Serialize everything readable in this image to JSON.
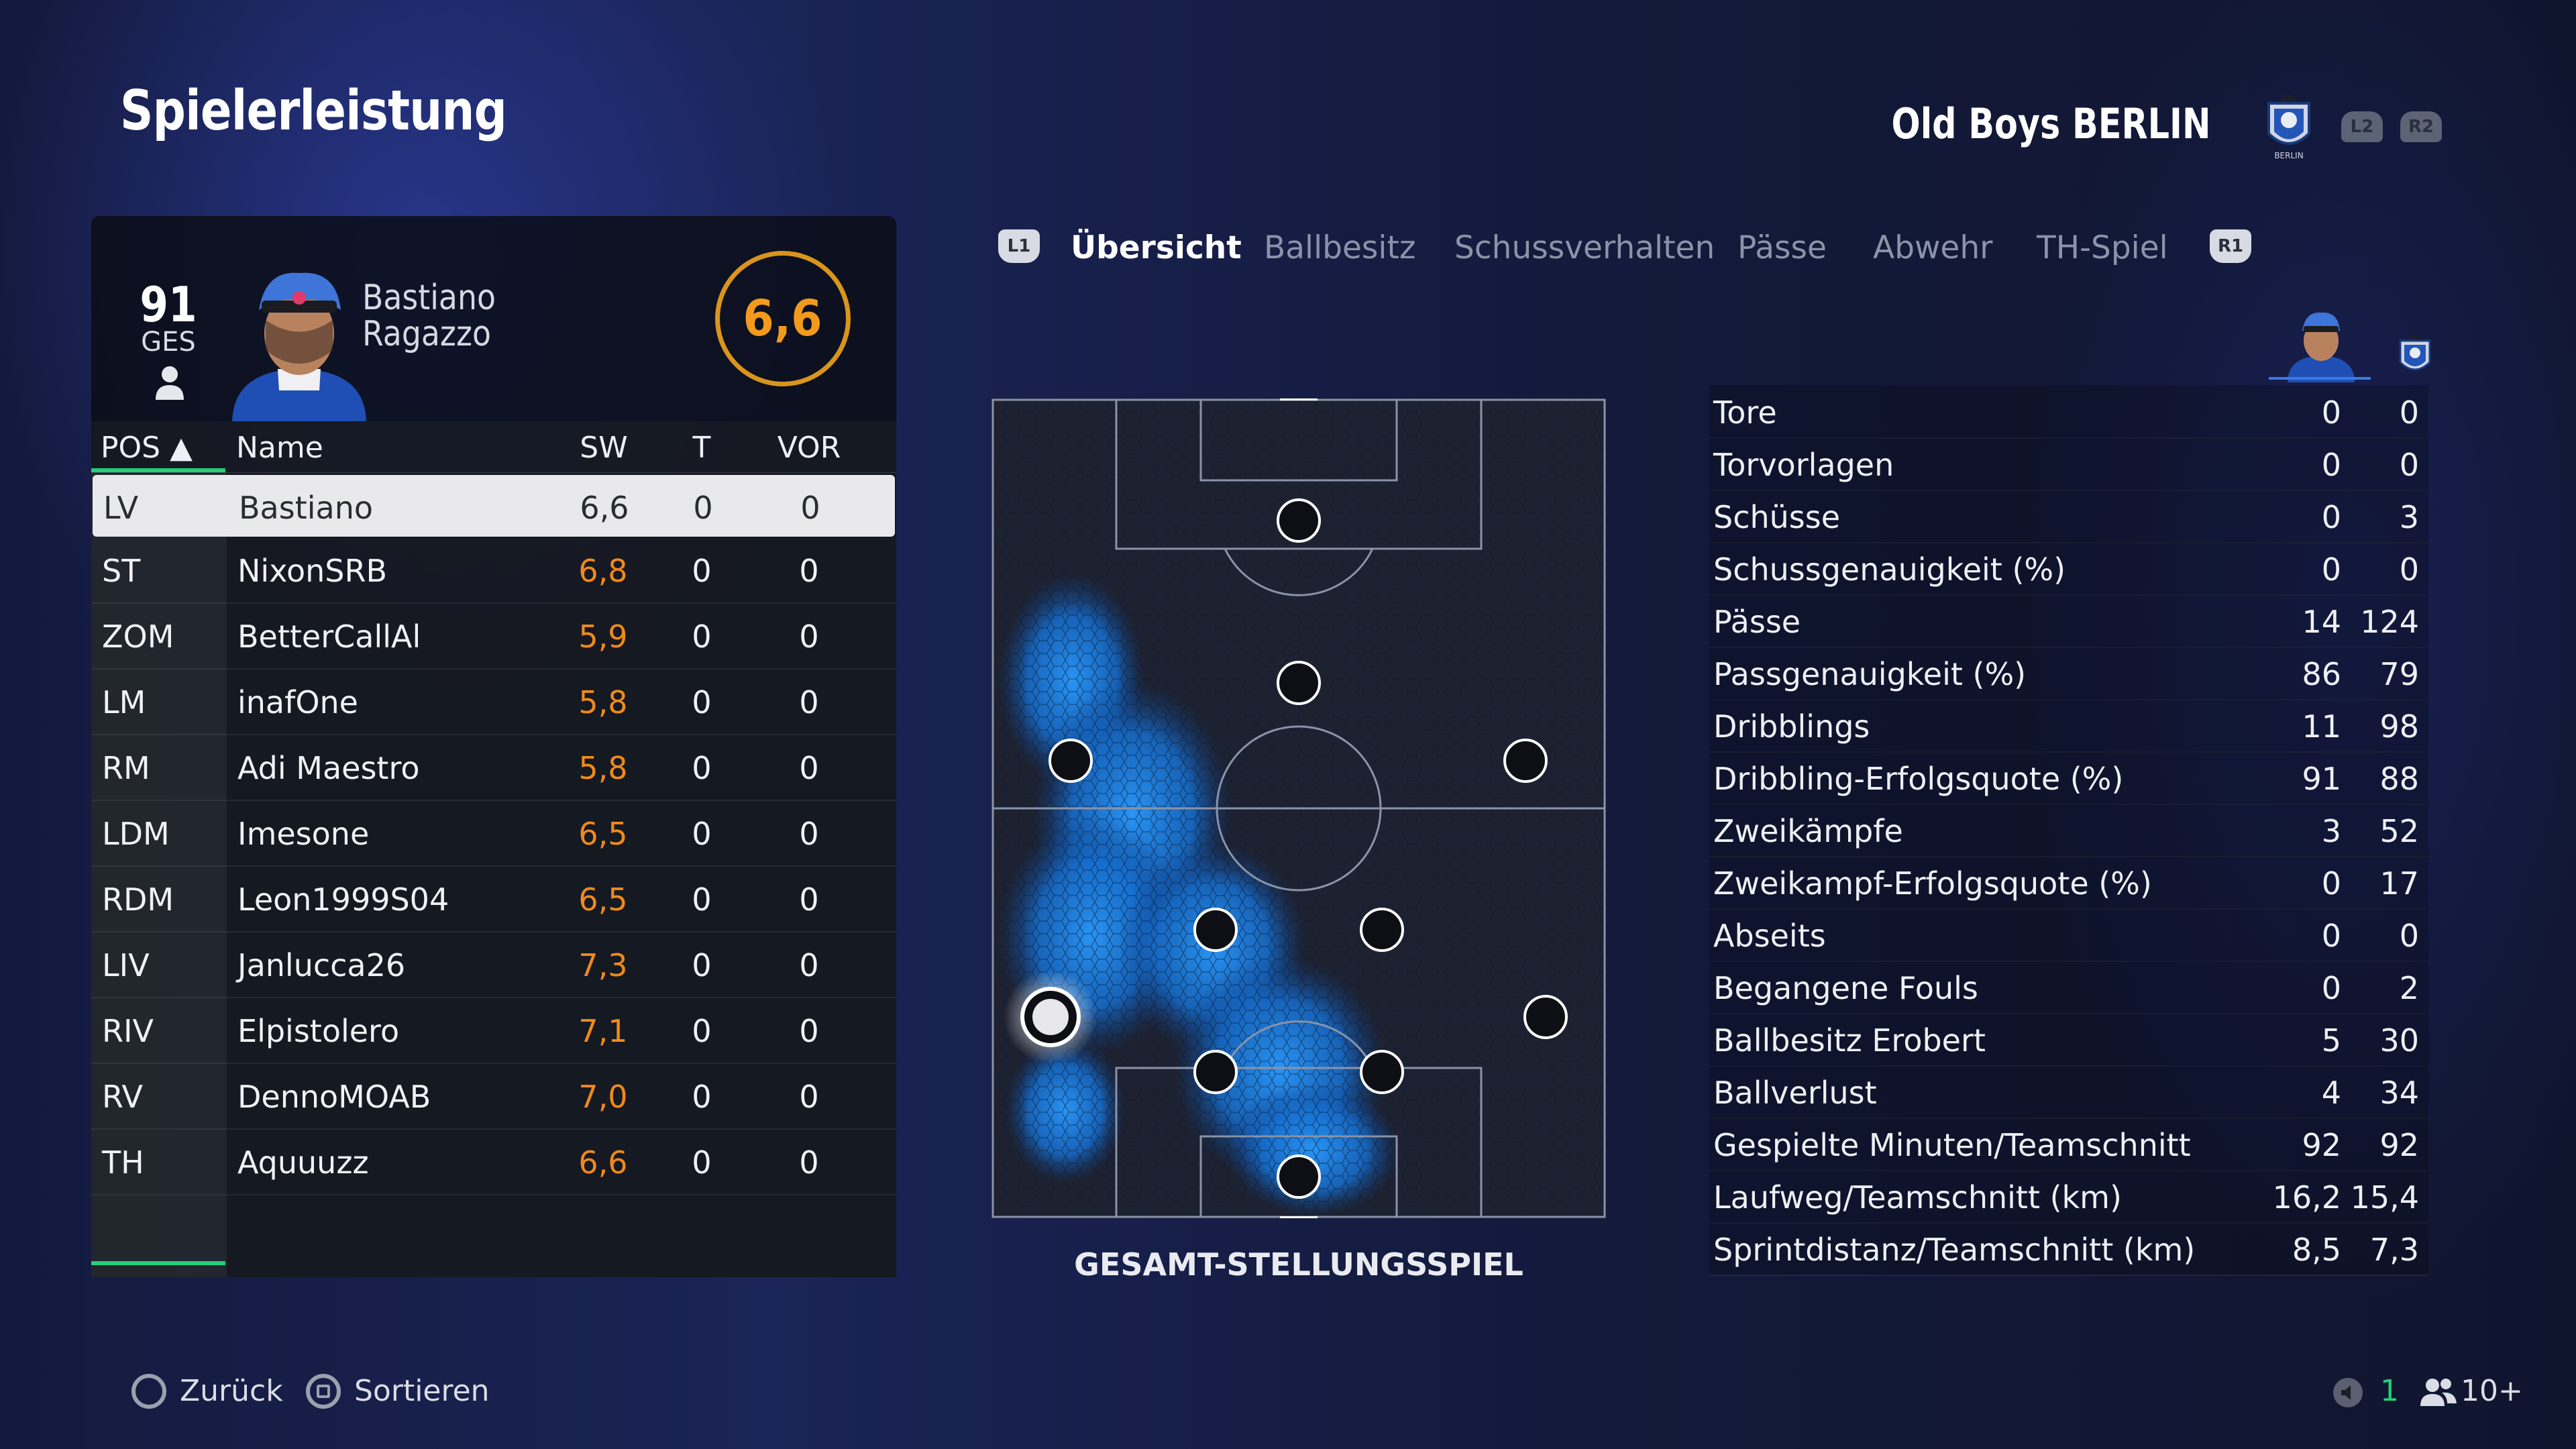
{
  "header": {
    "title": "Spielerleistung",
    "team_name": "Old Boys BERLIN",
    "crest_icon": "club-crest-icon",
    "l2_label": "L2",
    "r2_label": "R2"
  },
  "player": {
    "overall": "91",
    "overall_label": "GES",
    "first_name": "Bastiano",
    "last_name": "Ragazzo",
    "match_rating": "6,6"
  },
  "table": {
    "headers": {
      "pos": "POS ▲",
      "name": "Name",
      "sw": "SW",
      "t": "T",
      "vor": "VOR"
    },
    "rows": [
      {
        "pos": "LV",
        "name": "Bastiano",
        "sw": "6,6",
        "t": "0",
        "vor": "0"
      },
      {
        "pos": "ST",
        "name": "NixonSRB",
        "sw": "6,8",
        "t": "0",
        "vor": "0"
      },
      {
        "pos": "ZOM",
        "name": "BetterCallAl",
        "sw": "5,9",
        "t": "0",
        "vor": "0"
      },
      {
        "pos": "LM",
        "name": "inafOne",
        "sw": "5,8",
        "t": "0",
        "vor": "0"
      },
      {
        "pos": "RM",
        "name": "Adi Maestro",
        "sw": "5,8",
        "t": "0",
        "vor": "0"
      },
      {
        "pos": "LDM",
        "name": "Imesone",
        "sw": "6,5",
        "t": "0",
        "vor": "0"
      },
      {
        "pos": "RDM",
        "name": "Leon1999S04",
        "sw": "6,5",
        "t": "0",
        "vor": "0"
      },
      {
        "pos": "LIV",
        "name": "Janlucca26",
        "sw": "7,3",
        "t": "0",
        "vor": "0"
      },
      {
        "pos": "RIV",
        "name": "Elpistolero",
        "sw": "7,1",
        "t": "0",
        "vor": "0"
      },
      {
        "pos": "RV",
        "name": "DennoMOAB",
        "sw": "7,0",
        "t": "0",
        "vor": "0"
      },
      {
        "pos": "TH",
        "name": "Aquuuzz",
        "sw": "6,6",
        "t": "0",
        "vor": "0"
      }
    ]
  },
  "tabs": {
    "l1": "L1",
    "r1": "R1",
    "items": [
      "Übersicht",
      "Ballbesitz",
      "Schussverhalten",
      "Pässe",
      "Abwehr",
      "TH-Spiel"
    ],
    "active": "Übersicht"
  },
  "pitch": {
    "caption": "GESAMT-STELLUNGSSPIEL"
  },
  "stats": [
    {
      "label": "Tore",
      "player": "0",
      "team": "0"
    },
    {
      "label": "Torvorlagen",
      "player": "0",
      "team": "0"
    },
    {
      "label": "Schüsse",
      "player": "0",
      "team": "3"
    },
    {
      "label": "Schussgenauigkeit (%)",
      "player": "0",
      "team": "0"
    },
    {
      "label": "Pässe",
      "player": "14",
      "team": "124"
    },
    {
      "label": "Passgenauigkeit (%)",
      "player": "86",
      "team": "79"
    },
    {
      "label": "Dribblings",
      "player": "11",
      "team": "98"
    },
    {
      "label": "Dribbling-Erfolgsquote (%)",
      "player": "91",
      "team": "88"
    },
    {
      "label": "Zweikämpfe",
      "player": "3",
      "team": "52"
    },
    {
      "label": "Zweikampf-Erfolgsquote (%)",
      "player": "0",
      "team": "17"
    },
    {
      "label": "Abseits",
      "player": "0",
      "team": "0"
    },
    {
      "label": "Begangene Fouls",
      "player": "0",
      "team": "2"
    },
    {
      "label": "Ballbesitz Erobert",
      "player": "5",
      "team": "30"
    },
    {
      "label": "Ballverlust",
      "player": "4",
      "team": "34"
    },
    {
      "label": "Gespielte Minuten/Teamschnitt",
      "player": "92",
      "team": "92"
    },
    {
      "label": "Laufweg/Teamschnitt (km)",
      "player": "16,2",
      "team": "15,4"
    },
    {
      "label": "Sprintdistanz/Teamschnitt (km)",
      "player": "8,5",
      "team": "7,3"
    }
  ],
  "footer": {
    "back_label": "Zurück",
    "sort_label": "Sortieren",
    "count_1": "1",
    "count_2": "10+"
  },
  "colors": {
    "accent_green": "#23d07a",
    "rating_orange": "#f08a1a",
    "heatmap_blue": "#1f8df0"
  }
}
